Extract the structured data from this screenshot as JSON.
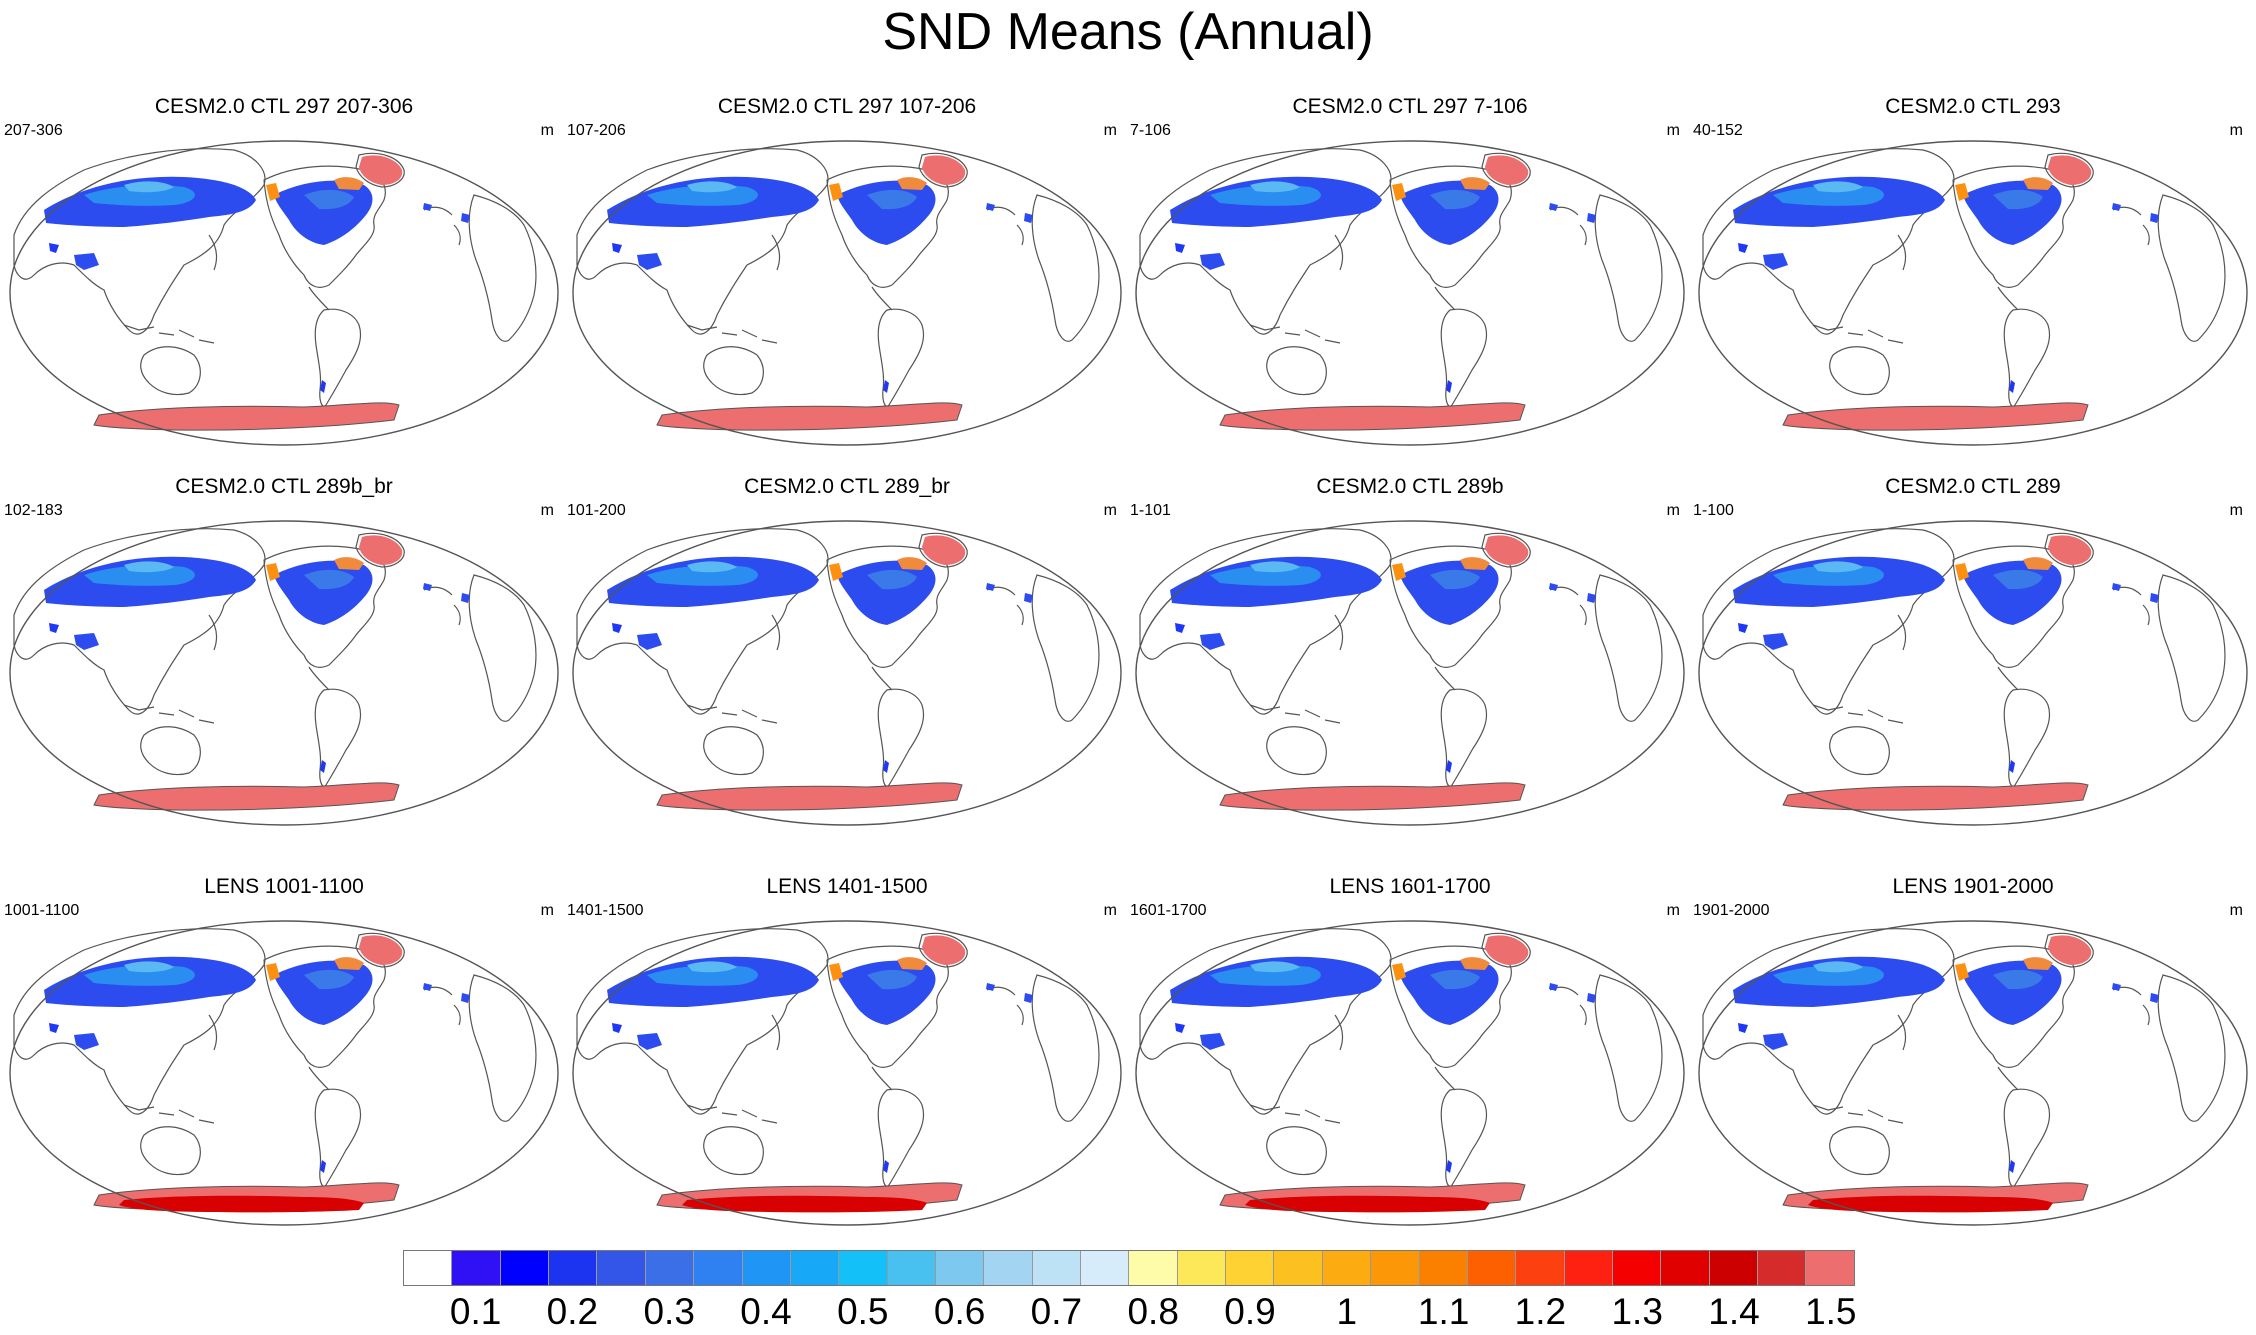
{
  "title": "SND Means (Annual)",
  "units": "m",
  "panels": [
    {
      "title": "CESM2.0 CTL 297 207-306",
      "period": "207-306",
      "units": "m",
      "antarctic": "plain"
    },
    {
      "title": "CESM2.0 CTL 297 107-206",
      "period": "107-206",
      "units": "m",
      "antarctic": "plain"
    },
    {
      "title": "CESM2.0 CTL 297 7-106",
      "period": "7-106",
      "units": "m",
      "antarctic": "plain"
    },
    {
      "title": "CESM2.0 CTL 293",
      "period": "40-152",
      "units": "m",
      "antarctic": "plain"
    },
    {
      "title": "CESM2.0 CTL 289b_br",
      "period": "102-183",
      "units": "m",
      "antarctic": "plain"
    },
    {
      "title": "CESM2.0 CTL 289_br",
      "period": "101-200",
      "units": "m",
      "antarctic": "plain"
    },
    {
      "title": "CESM2.0 CTL 289b",
      "period": "1-101",
      "units": "m",
      "antarctic": "plain"
    },
    {
      "title": "CESM2.0 CTL 289",
      "period": "1-100",
      "units": "m",
      "antarctic": "plain"
    },
    {
      "title": "LENS 1001-1100",
      "period": "1001-1100",
      "units": "m",
      "antarctic": "deep"
    },
    {
      "title": "LENS 1401-1500",
      "period": "1401-1500",
      "units": "m",
      "antarctic": "deep"
    },
    {
      "title": "LENS 1601-1700",
      "period": "1601-1700",
      "units": "m",
      "antarctic": "deep"
    },
    {
      "title": "LENS 1901-2000",
      "period": "1901-2000",
      "units": "m",
      "antarctic": "deep"
    }
  ],
  "colorbar": {
    "labels": [
      "0.1",
      "0.2",
      "0.3",
      "0.4",
      "0.5",
      "0.6",
      "0.7",
      "0.8",
      "0.9",
      "1",
      "1.1",
      "1.2",
      "1.3",
      "1.4",
      "1.5"
    ],
    "colors": [
      "#ffffff",
      "#3010f5",
      "#0000ff",
      "#1c33f0",
      "#3355e8",
      "#3b6fe8",
      "#2f80f0",
      "#1f95f5",
      "#18a8f8",
      "#14c0f8",
      "#48c0f0",
      "#7cc8ee",
      "#a3d5f3",
      "#bde2f6",
      "#d6ecfa",
      "#fefca8",
      "#fde85a",
      "#fdd232",
      "#fcc020",
      "#fcac10",
      "#fc9808",
      "#fc8000",
      "#fc6000",
      "#fc4010",
      "#fe2010",
      "#f40000",
      "#e00000",
      "#cc0000",
      "#d52b2b",
      "#ec6e6e"
    ]
  }
}
